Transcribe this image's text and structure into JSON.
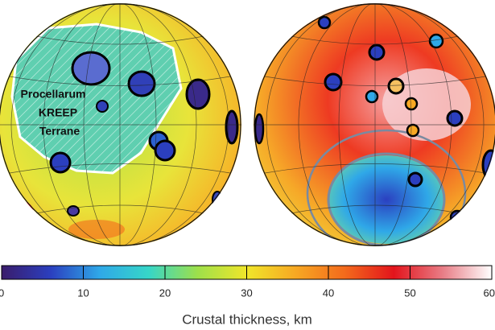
{
  "chart_data": {
    "type": "map",
    "annotation": [
      "Procellarum",
      "KREEP",
      "Terrane"
    ],
    "colorbar": {
      "label": "Crustal thickness, km",
      "lim": [
        0,
        60
      ],
      "ticks": [
        0,
        10,
        20,
        30,
        40,
        50,
        60
      ],
      "colormap": [
        "#3a1c6b",
        "#2b3fbf",
        "#2fa8e8",
        "#36d6c8",
        "#9ee04a",
        "#f0e62a",
        "#f7a823",
        "#f36a1c",
        "#e3141c",
        "#e87d86",
        "#ffffff"
      ]
    }
  }
}
